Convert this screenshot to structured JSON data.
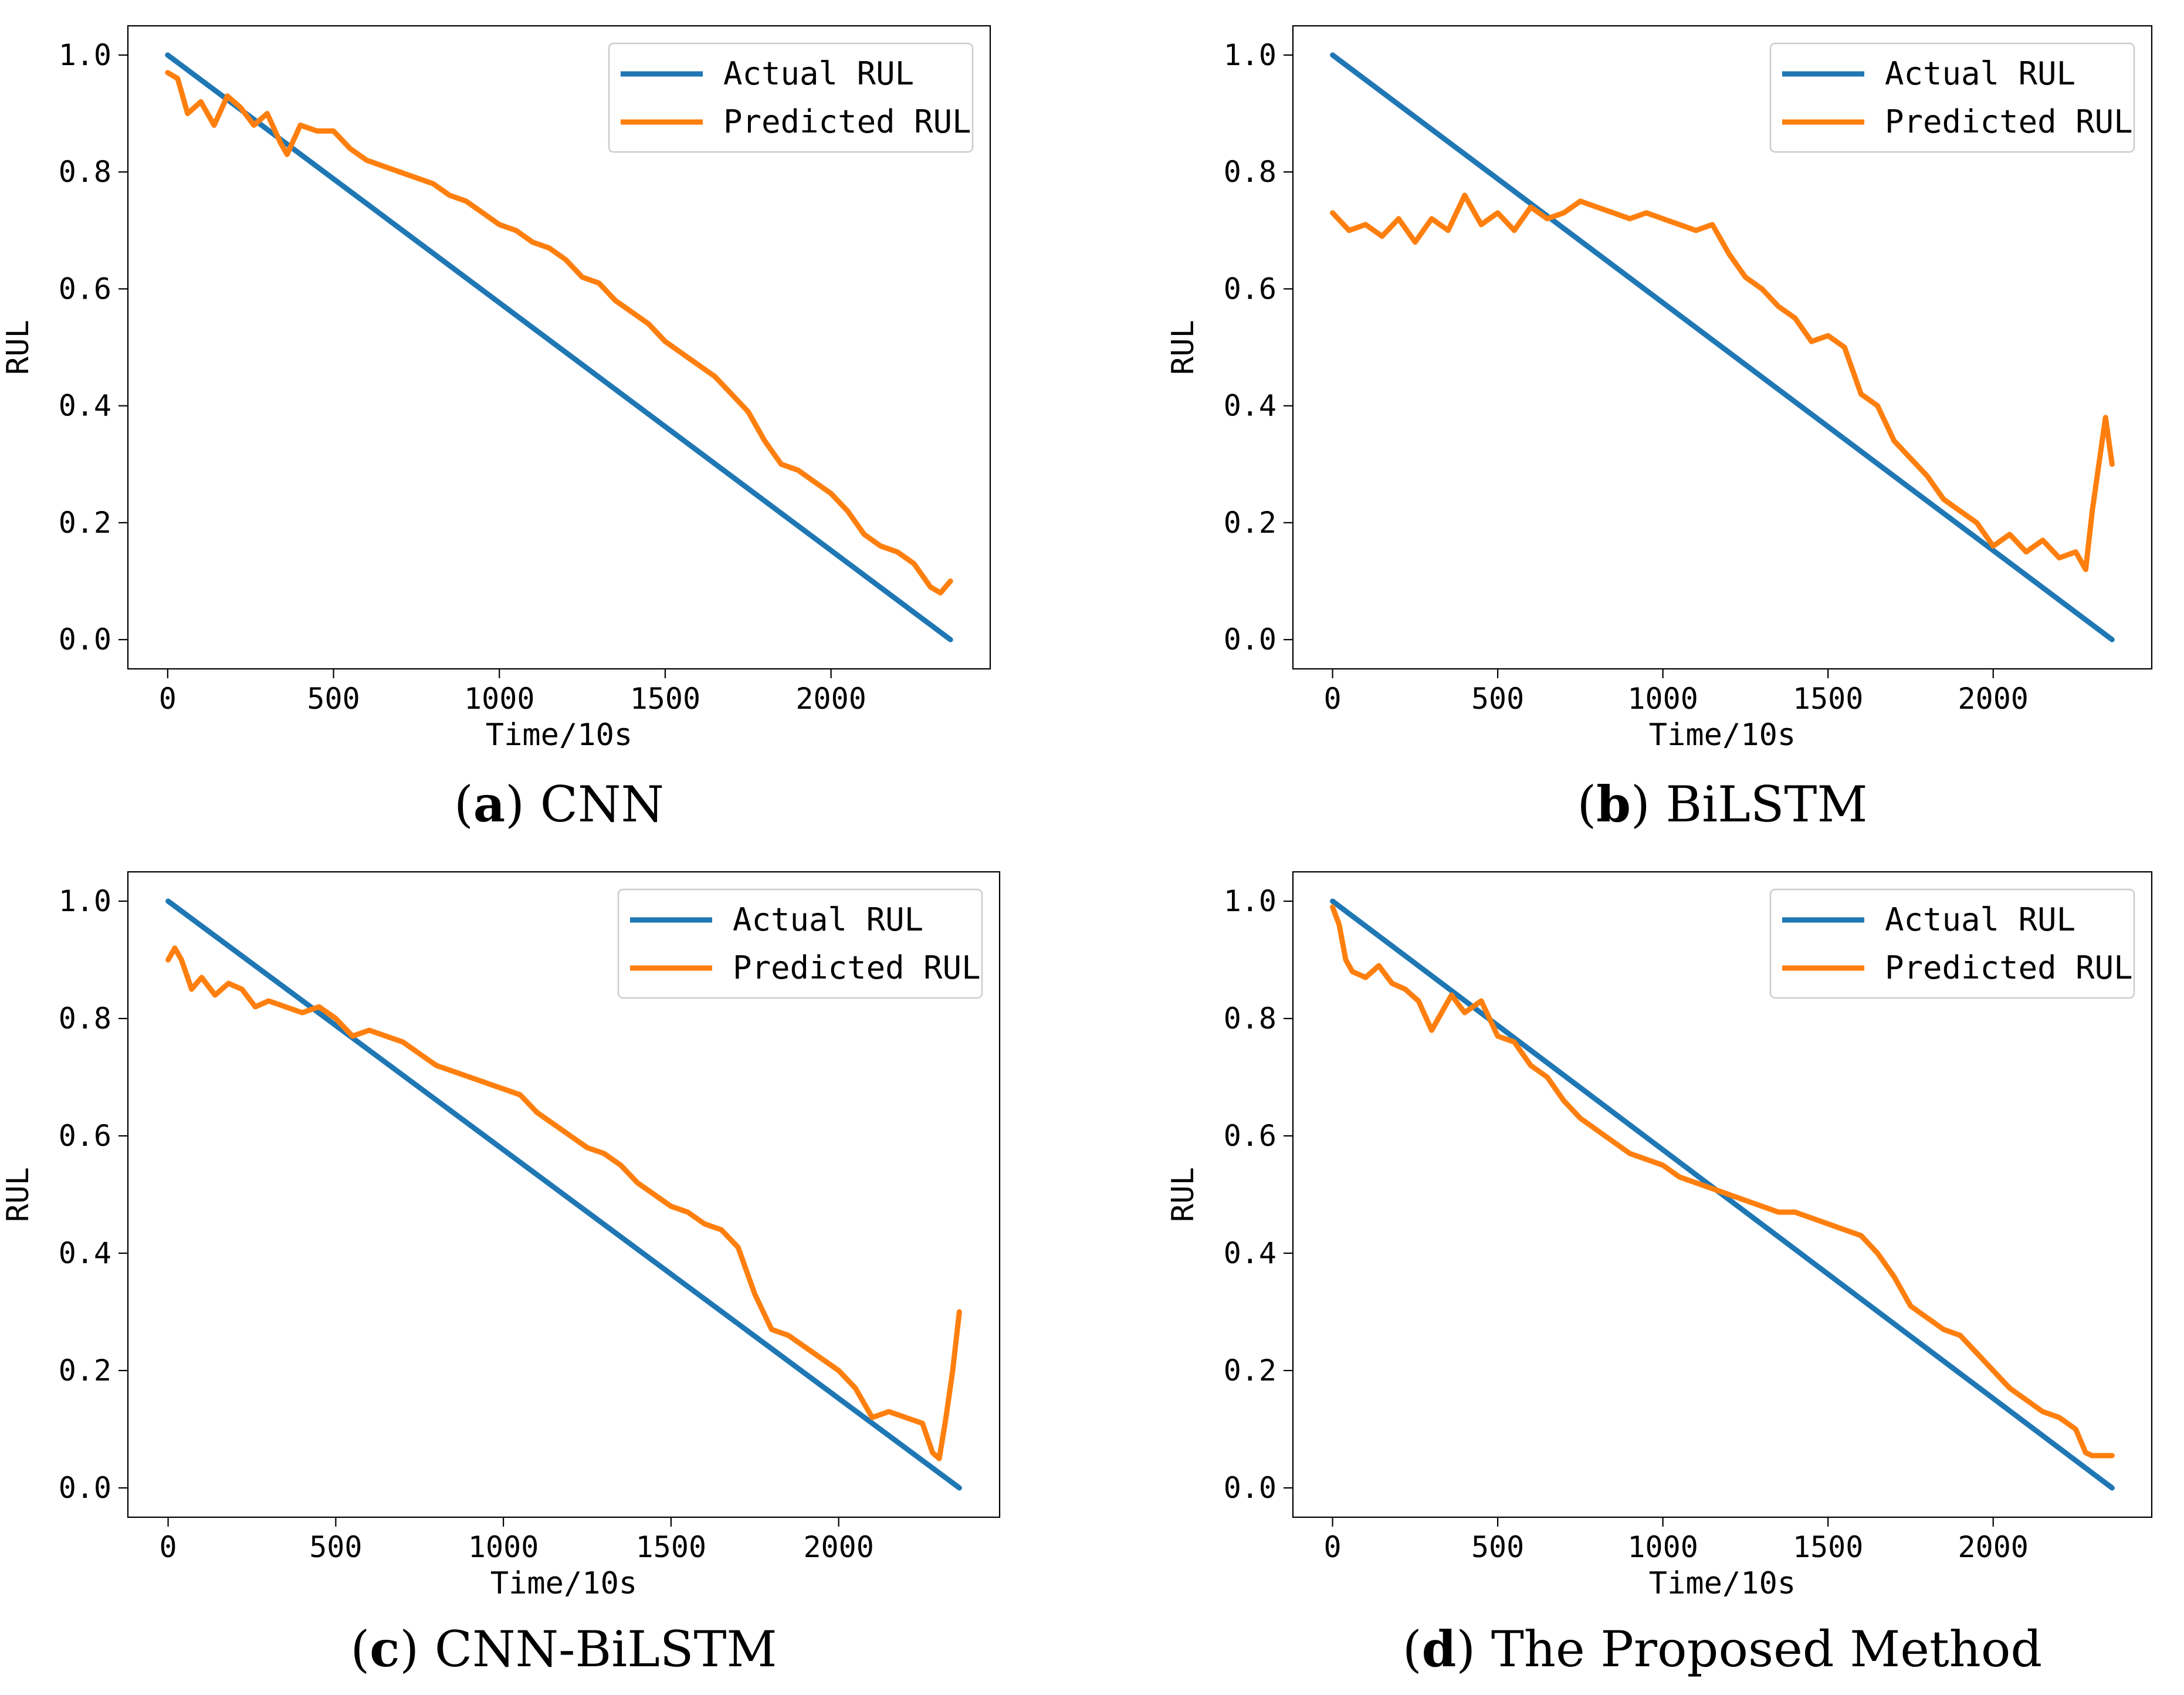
{
  "chart_data": [
    {
      "type": "line",
      "panel": "a",
      "caption_letter": "a",
      "caption_text": "CNN",
      "title": "",
      "xlabel": "Time/10s",
      "ylabel": "RUL",
      "xlim": [
        -120,
        2480
      ],
      "ylim": [
        -0.05,
        1.05
      ],
      "xticks": [
        0,
        500,
        1000,
        1500,
        2000
      ],
      "xtick_labels": [
        "0",
        "500",
        "1000",
        "1500",
        "2000"
      ],
      "yticks": [
        0.0,
        0.2,
        0.4,
        0.6,
        0.8,
        1.0
      ],
      "ytick_labels": [
        "0.0",
        "0.2",
        "0.4",
        "0.6",
        "0.8",
        "1.0"
      ],
      "legend": [
        "Actual RUL",
        "Predicted RUL"
      ],
      "legend_position": "top-right",
      "series": [
        {
          "name": "Actual RUL",
          "color": "#1f77b4",
          "x": [
            0,
            2360
          ],
          "y": [
            1.0,
            0.0
          ]
        },
        {
          "name": "Predicted RUL",
          "color": "#ff7f0e",
          "x": [
            0,
            30,
            60,
            100,
            140,
            180,
            220,
            260,
            300,
            340,
            360,
            400,
            450,
            500,
            550,
            600,
            650,
            700,
            750,
            800,
            850,
            900,
            950,
            1000,
            1050,
            1100,
            1150,
            1200,
            1250,
            1300,
            1350,
            1400,
            1450,
            1500,
            1550,
            1600,
            1650,
            1700,
            1750,
            1800,
            1850,
            1900,
            1950,
            2000,
            2050,
            2100,
            2150,
            2200,
            2250,
            2300,
            2330,
            2360
          ],
          "y": [
            0.97,
            0.96,
            0.9,
            0.92,
            0.88,
            0.93,
            0.91,
            0.88,
            0.9,
            0.85,
            0.83,
            0.88,
            0.87,
            0.87,
            0.84,
            0.82,
            0.81,
            0.8,
            0.79,
            0.78,
            0.76,
            0.75,
            0.73,
            0.71,
            0.7,
            0.68,
            0.67,
            0.65,
            0.62,
            0.61,
            0.58,
            0.56,
            0.54,
            0.51,
            0.49,
            0.47,
            0.45,
            0.42,
            0.39,
            0.34,
            0.3,
            0.29,
            0.27,
            0.25,
            0.22,
            0.18,
            0.16,
            0.15,
            0.13,
            0.09,
            0.08,
            0.1
          ]
        }
      ]
    },
    {
      "type": "line",
      "panel": "b",
      "caption_letter": "b",
      "caption_text": "BiLSTM",
      "title": "",
      "xlabel": "Time/10s",
      "ylabel": "RUL",
      "xlim": [
        -120,
        2480
      ],
      "ylim": [
        -0.05,
        1.05
      ],
      "xticks": [
        0,
        500,
        1000,
        1500,
        2000
      ],
      "xtick_labels": [
        "0",
        "500",
        "1000",
        "1500",
        "2000"
      ],
      "yticks": [
        0.0,
        0.2,
        0.4,
        0.6,
        0.8,
        1.0
      ],
      "ytick_labels": [
        "0.0",
        "0.2",
        "0.4",
        "0.6",
        "0.8",
        "1.0"
      ],
      "legend": [
        "Actual RUL",
        "Predicted RUL"
      ],
      "legend_position": "top-right",
      "series": [
        {
          "name": "Actual RUL",
          "color": "#1f77b4",
          "x": [
            0,
            2360
          ],
          "y": [
            1.0,
            0.0
          ]
        },
        {
          "name": "Predicted RUL",
          "color": "#ff7f0e",
          "x": [
            0,
            50,
            100,
            150,
            200,
            250,
            300,
            350,
            400,
            450,
            500,
            550,
            600,
            650,
            700,
            750,
            800,
            850,
            900,
            950,
            1000,
            1050,
            1100,
            1150,
            1200,
            1250,
            1300,
            1350,
            1400,
            1450,
            1500,
            1550,
            1600,
            1650,
            1700,
            1750,
            1800,
            1850,
            1900,
            1950,
            2000,
            2050,
            2100,
            2150,
            2200,
            2250,
            2280,
            2300,
            2320,
            2340,
            2360
          ],
          "y": [
            0.73,
            0.7,
            0.71,
            0.69,
            0.72,
            0.68,
            0.72,
            0.7,
            0.76,
            0.71,
            0.73,
            0.7,
            0.74,
            0.72,
            0.73,
            0.75,
            0.74,
            0.73,
            0.72,
            0.73,
            0.72,
            0.71,
            0.7,
            0.71,
            0.66,
            0.62,
            0.6,
            0.57,
            0.55,
            0.51,
            0.52,
            0.5,
            0.42,
            0.4,
            0.34,
            0.31,
            0.28,
            0.24,
            0.22,
            0.2,
            0.16,
            0.18,
            0.15,
            0.17,
            0.14,
            0.15,
            0.12,
            0.22,
            0.3,
            0.38,
            0.3
          ]
        }
      ]
    },
    {
      "type": "line",
      "panel": "c",
      "caption_letter": "c",
      "caption_text": "CNN-BiLSTM",
      "title": "",
      "xlabel": "Time/10s",
      "ylabel": "RUL",
      "xlim": [
        -120,
        2480
      ],
      "ylim": [
        -0.05,
        1.05
      ],
      "xticks": [
        0,
        500,
        1000,
        1500,
        2000
      ],
      "xtick_labels": [
        "0",
        "500",
        "1000",
        "1500",
        "2000"
      ],
      "yticks": [
        0.0,
        0.2,
        0.4,
        0.6,
        0.8,
        1.0
      ],
      "ytick_labels": [
        "0.0",
        "0.2",
        "0.4",
        "0.6",
        "0.8",
        "1.0"
      ],
      "legend": [
        "Actual RUL",
        "Predicted RUL"
      ],
      "legend_position": "top-right",
      "series": [
        {
          "name": "Actual RUL",
          "color": "#1f77b4",
          "x": [
            0,
            2360
          ],
          "y": [
            1.0,
            0.0
          ]
        },
        {
          "name": "Predicted RUL",
          "color": "#ff7f0e",
          "x": [
            0,
            20,
            40,
            70,
            100,
            140,
            180,
            220,
            260,
            300,
            350,
            400,
            450,
            500,
            550,
            600,
            650,
            700,
            750,
            800,
            850,
            900,
            950,
            1000,
            1050,
            1100,
            1150,
            1200,
            1250,
            1300,
            1350,
            1400,
            1450,
            1500,
            1550,
            1600,
            1650,
            1700,
            1750,
            1800,
            1850,
            1900,
            1950,
            2000,
            2050,
            2100,
            2150,
            2200,
            2250,
            2280,
            2300,
            2320,
            2340,
            2360
          ],
          "y": [
            0.9,
            0.92,
            0.9,
            0.85,
            0.87,
            0.84,
            0.86,
            0.85,
            0.82,
            0.83,
            0.82,
            0.81,
            0.82,
            0.8,
            0.77,
            0.78,
            0.77,
            0.76,
            0.74,
            0.72,
            0.71,
            0.7,
            0.69,
            0.68,
            0.67,
            0.64,
            0.62,
            0.6,
            0.58,
            0.57,
            0.55,
            0.52,
            0.5,
            0.48,
            0.47,
            0.45,
            0.44,
            0.41,
            0.33,
            0.27,
            0.26,
            0.24,
            0.22,
            0.2,
            0.17,
            0.12,
            0.13,
            0.12,
            0.11,
            0.06,
            0.05,
            0.12,
            0.2,
            0.3
          ]
        }
      ]
    },
    {
      "type": "line",
      "panel": "d",
      "caption_letter": "d",
      "caption_text": "The Proposed Method",
      "title": "",
      "xlabel": "Time/10s",
      "ylabel": "RUL",
      "xlim": [
        -120,
        2480
      ],
      "ylim": [
        -0.05,
        1.05
      ],
      "xticks": [
        0,
        500,
        1000,
        1500,
        2000
      ],
      "xtick_labels": [
        "0",
        "500",
        "1000",
        "1500",
        "2000"
      ],
      "yticks": [
        0.0,
        0.2,
        0.4,
        0.6,
        0.8,
        1.0
      ],
      "ytick_labels": [
        "0.0",
        "0.2",
        "0.4",
        "0.6",
        "0.8",
        "1.0"
      ],
      "legend": [
        "Actual RUL",
        "Predicted RUL"
      ],
      "legend_position": "top-right",
      "series": [
        {
          "name": "Actual RUL",
          "color": "#1f77b4",
          "x": [
            0,
            2360
          ],
          "y": [
            1.0,
            0.0
          ]
        },
        {
          "name": "Predicted RUL",
          "color": "#ff7f0e",
          "x": [
            0,
            20,
            40,
            60,
            100,
            140,
            180,
            220,
            260,
            300,
            320,
            360,
            400,
            450,
            500,
            550,
            600,
            650,
            700,
            750,
            800,
            850,
            900,
            950,
            1000,
            1050,
            1100,
            1150,
            1200,
            1250,
            1300,
            1350,
            1400,
            1450,
            1500,
            1550,
            1600,
            1650,
            1700,
            1750,
            1800,
            1850,
            1900,
            1950,
            2000,
            2050,
            2100,
            2150,
            2200,
            2250,
            2280,
            2300,
            2360
          ],
          "y": [
            0.99,
            0.96,
            0.9,
            0.88,
            0.87,
            0.89,
            0.86,
            0.85,
            0.83,
            0.78,
            0.8,
            0.84,
            0.81,
            0.83,
            0.77,
            0.76,
            0.72,
            0.7,
            0.66,
            0.63,
            0.61,
            0.59,
            0.57,
            0.56,
            0.55,
            0.53,
            0.52,
            0.51,
            0.5,
            0.49,
            0.48,
            0.47,
            0.47,
            0.46,
            0.45,
            0.44,
            0.43,
            0.4,
            0.36,
            0.31,
            0.29,
            0.27,
            0.26,
            0.23,
            0.2,
            0.17,
            0.15,
            0.13,
            0.12,
            0.1,
            0.06,
            0.055,
            0.055
          ]
        }
      ]
    }
  ]
}
